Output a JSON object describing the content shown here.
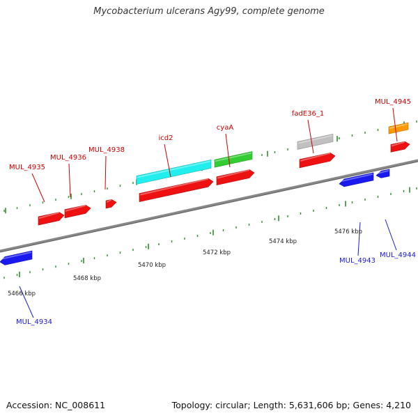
{
  "title": "Mycobacterium ulcerans Agy99, complete genome",
  "footer": {
    "accession": "Accession: NC_008611",
    "summary": "Topology: circular; Length: 5,631,606 bp; Genes: 4,210"
  },
  "colors": {
    "backbone": "#888888",
    "tick": "#2e8b2e",
    "forward_label": "#cc0000",
    "reverse_label": "#1a1acc",
    "cds_red": "#ee1111",
    "cds_blue": "#1a1aee",
    "cyan": "#22eeee",
    "green": "#33cc33",
    "grey": "#c0c0c0",
    "orange": "#ff9900"
  },
  "ruler": {
    "unit": "kbp",
    "labels": [
      "5466 kbp",
      "5468 kbp",
      "5470 kbp",
      "5472 kbp",
      "5474 kbp",
      "5476 kbp"
    ]
  },
  "forward_labels": [
    "MUL_4935",
    "MUL_4936",
    "MUL_4938",
    "icd2",
    "cyaA",
    "fadE36_1",
    "MUL_4945"
  ],
  "reverse_labels": [
    "MUL_4934",
    "MUL_4943",
    "MUL_4944"
  ],
  "features": [
    {
      "name": "MUL_4934",
      "strand": "reverse",
      "color": "cds_blue"
    },
    {
      "name": "MUL_4935",
      "strand": "forward",
      "color": "cds_red"
    },
    {
      "name": "MUL_4936",
      "strand": "forward",
      "color": "cds_red"
    },
    {
      "name": "MUL_4938",
      "strand": "forward",
      "color": "cds_red"
    },
    {
      "name": "icd2",
      "strand": "forward",
      "color": "cds_red"
    },
    {
      "name": "icd2",
      "strand": "forward",
      "color": "cyan"
    },
    {
      "name": "cyaA",
      "strand": "forward",
      "color": "cds_red"
    },
    {
      "name": "cyaA",
      "strand": "forward",
      "color": "green"
    },
    {
      "name": "fadE36_1",
      "strand": "forward",
      "color": "cds_red"
    },
    {
      "name": "fadE36_1",
      "strand": "forward",
      "color": "grey"
    },
    {
      "name": "MUL_4943",
      "strand": "reverse",
      "color": "cds_blue"
    },
    {
      "name": "MUL_4944",
      "strand": "reverse",
      "color": "cds_blue"
    },
    {
      "name": "MUL_4945",
      "strand": "forward",
      "color": "cds_red"
    },
    {
      "name": "MUL_4945",
      "strand": "forward",
      "color": "orange"
    }
  ]
}
